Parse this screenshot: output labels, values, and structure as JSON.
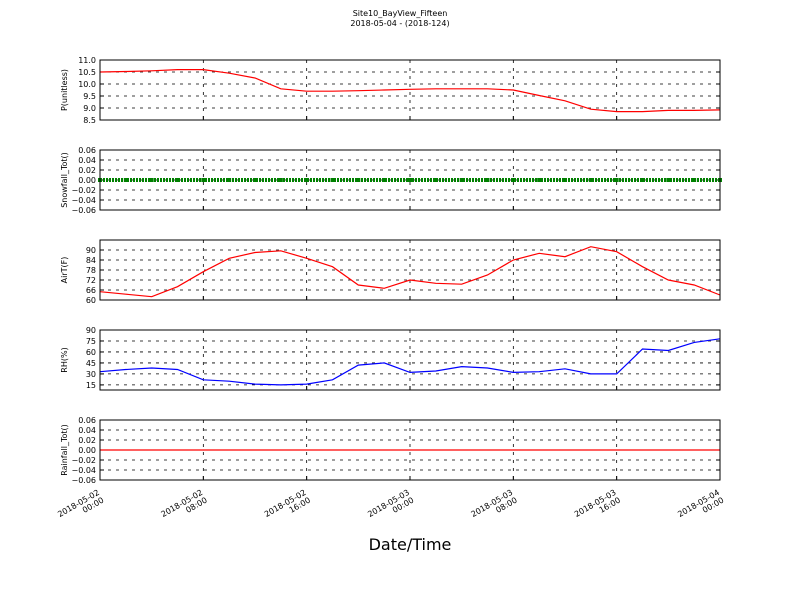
{
  "chart_data": [
    {
      "type": "line",
      "title": "Site10_BayView_Fifteen",
      "subtitle": "2018-05-04 - (2018-124)",
      "ylabel": "P(unitless)",
      "color": "#ff0000",
      "x": [
        "2018-05-02 00:00",
        "2018-05-02 02:00",
        "2018-05-02 04:00",
        "2018-05-02 06:00",
        "2018-05-02 08:00",
        "2018-05-02 10:00",
        "2018-05-02 12:00",
        "2018-05-02 14:00",
        "2018-05-02 16:00",
        "2018-05-02 18:00",
        "2018-05-02 20:00",
        "2018-05-02 22:00",
        "2018-05-03 00:00",
        "2018-05-03 02:00",
        "2018-05-03 04:00",
        "2018-05-03 06:00",
        "2018-05-03 08:00",
        "2018-05-03 10:00",
        "2018-05-03 12:00",
        "2018-05-03 14:00",
        "2018-05-03 16:00",
        "2018-05-03 18:00",
        "2018-05-03 20:00",
        "2018-05-03 22:00",
        "2018-05-04 00:00"
      ],
      "values": [
        10.5,
        10.52,
        10.55,
        10.6,
        10.6,
        10.45,
        10.25,
        9.8,
        9.7,
        9.7,
        9.72,
        9.75,
        9.78,
        9.8,
        9.8,
        9.8,
        9.75,
        9.52,
        9.3,
        8.95,
        8.85,
        8.85,
        8.9,
        8.9,
        8.92
      ],
      "xlim": [
        "2018-05-02 00:00",
        "2018-05-04 00:00"
      ],
      "ylim": [
        8.5,
        11
      ],
      "yticks": [
        8.5,
        {
          "value": 9,
          "label": "9.0"
        },
        9.5,
        {
          "value": 10,
          "label": "10.0"
        },
        10.5,
        {
          "value": 11,
          "label": "11.0"
        }
      ],
      "grid": true
    },
    {
      "type": "scatter",
      "ylabel": "Snowfall_Tot()",
      "color": "#008000",
      "x": [
        "2018-05-02 00:00",
        "2018-05-02 02:00",
        "2018-05-02 04:00",
        "2018-05-02 06:00",
        "2018-05-02 08:00",
        "2018-05-02 10:00",
        "2018-05-02 12:00",
        "2018-05-02 14:00",
        "2018-05-02 16:00",
        "2018-05-02 18:00",
        "2018-05-02 20:00",
        "2018-05-02 22:00",
        "2018-05-03 00:00",
        "2018-05-03 02:00",
        "2018-05-03 04:00",
        "2018-05-03 06:00",
        "2018-05-03 08:00",
        "2018-05-03 10:00",
        "2018-05-03 12:00",
        "2018-05-03 14:00",
        "2018-05-03 16:00",
        "2018-05-03 18:00",
        "2018-05-03 20:00",
        "2018-05-03 22:00",
        "2018-05-04 00:00"
      ],
      "values": [
        0,
        0,
        0,
        0,
        0,
        0,
        0,
        0,
        0,
        0,
        0,
        0,
        0,
        0,
        0,
        0,
        0,
        0,
        0,
        0,
        0,
        0,
        0,
        0,
        0
      ],
      "xlim": [
        "2018-05-02 00:00",
        "2018-05-04 00:00"
      ],
      "ylim": [
        -0.06,
        0.06
      ],
      "yticks": [
        {
          "value": -0.06,
          "label": "−0.06"
        },
        {
          "value": -0.04,
          "label": "−0.04"
        },
        {
          "value": -0.02,
          "label": "−0.02"
        },
        {
          "value": 0,
          "label": "0.00"
        },
        {
          "value": 0.02,
          "label": "0.02"
        },
        {
          "value": 0.04,
          "label": "0.04"
        },
        {
          "value": 0.06,
          "label": "0.06"
        }
      ],
      "grid": true
    },
    {
      "type": "line",
      "ylabel": "AirT(F)",
      "color": "#ff0000",
      "x": [
        "2018-05-02 00:00",
        "2018-05-02 02:00",
        "2018-05-02 04:00",
        "2018-05-02 06:00",
        "2018-05-02 08:00",
        "2018-05-02 10:00",
        "2018-05-02 12:00",
        "2018-05-02 14:00",
        "2018-05-02 16:00",
        "2018-05-02 18:00",
        "2018-05-02 20:00",
        "2018-05-02 22:00",
        "2018-05-03 00:00",
        "2018-05-03 02:00",
        "2018-05-03 04:00",
        "2018-05-03 06:00",
        "2018-05-03 08:00",
        "2018-05-03 10:00",
        "2018-05-03 12:00",
        "2018-05-03 14:00",
        "2018-05-03 16:00",
        "2018-05-03 18:00",
        "2018-05-03 20:00",
        "2018-05-03 22:00",
        "2018-05-04 00:00"
      ],
      "values": [
        65,
        63.5,
        62,
        68,
        77,
        85,
        88.5,
        89.5,
        85,
        80,
        69,
        67,
        72,
        70,
        69.5,
        75,
        84,
        88,
        86,
        92,
        89,
        80,
        72,
        69,
        63
      ],
      "xlim": [
        "2018-05-02 00:00",
        "2018-05-04 00:00"
      ],
      "ylim": [
        60,
        96
      ],
      "yticks": [
        60,
        66,
        72,
        78,
        84,
        90
      ],
      "grid": true
    },
    {
      "type": "line",
      "ylabel": "RH(%)",
      "color": "#0000ff",
      "x": [
        "2018-05-02 00:00",
        "2018-05-02 02:00",
        "2018-05-02 04:00",
        "2018-05-02 06:00",
        "2018-05-02 08:00",
        "2018-05-02 10:00",
        "2018-05-02 12:00",
        "2018-05-02 14:00",
        "2018-05-02 16:00",
        "2018-05-02 18:00",
        "2018-05-02 20:00",
        "2018-05-02 22:00",
        "2018-05-03 00:00",
        "2018-05-03 02:00",
        "2018-05-03 04:00",
        "2018-05-03 06:00",
        "2018-05-03 08:00",
        "2018-05-03 10:00",
        "2018-05-03 12:00",
        "2018-05-03 14:00",
        "2018-05-03 16:00",
        "2018-05-03 18:00",
        "2018-05-03 20:00",
        "2018-05-03 22:00",
        "2018-05-04 00:00"
      ],
      "values": [
        33,
        36,
        38,
        36,
        22,
        20,
        16,
        15,
        16,
        22,
        42,
        45,
        32,
        34,
        40,
        38,
        32,
        33,
        37,
        30,
        30,
        64,
        62,
        73,
        78
      ],
      "xlim": [
        "2018-05-02 00:00",
        "2018-05-04 00:00"
      ],
      "ylim": [
        8,
        90
      ],
      "yticks": [
        15,
        30,
        45,
        60,
        75,
        90
      ],
      "grid": true
    },
    {
      "type": "line",
      "ylabel": "Rainfall_Tot()",
      "xlabel": "Date/Time",
      "color": "#ff0000",
      "x": [
        "2018-05-02 00:00",
        "2018-05-02 02:00",
        "2018-05-02 04:00",
        "2018-05-02 06:00",
        "2018-05-02 08:00",
        "2018-05-02 10:00",
        "2018-05-02 12:00",
        "2018-05-02 14:00",
        "2018-05-02 16:00",
        "2018-05-02 18:00",
        "2018-05-02 20:00",
        "2018-05-02 22:00",
        "2018-05-03 00:00",
        "2018-05-03 02:00",
        "2018-05-03 04:00",
        "2018-05-03 06:00",
        "2018-05-03 08:00",
        "2018-05-03 10:00",
        "2018-05-03 12:00",
        "2018-05-03 14:00",
        "2018-05-03 16:00",
        "2018-05-03 18:00",
        "2018-05-03 20:00",
        "2018-05-03 22:00",
        "2018-05-04 00:00"
      ],
      "values": [
        0,
        0,
        0,
        0,
        0,
        0,
        0,
        0,
        0,
        0,
        0,
        0,
        0,
        0,
        0,
        0,
        0,
        0,
        0,
        0,
        0,
        0,
        0,
        0,
        0
      ],
      "xlim": [
        "2018-05-02 00:00",
        "2018-05-04 00:00"
      ],
      "ylim": [
        -0.06,
        0.06
      ],
      "yticks": [
        {
          "value": -0.06,
          "label": "−0.06"
        },
        {
          "value": -0.04,
          "label": "−0.04"
        },
        {
          "value": -0.02,
          "label": "−0.02"
        },
        {
          "value": 0,
          "label": "0.00"
        },
        {
          "value": 0.02,
          "label": "0.02"
        },
        {
          "value": 0.04,
          "label": "0.04"
        },
        {
          "value": 0.06,
          "label": "0.06"
        }
      ],
      "xticks": [
        {
          "value": "2018-05-02 00:00",
          "label": "2018-05-02\n00:00"
        },
        {
          "value": "2018-05-02 08:00",
          "label": "2018-05-02\n08:00"
        },
        {
          "value": "2018-05-02 16:00",
          "label": "2018-05-02\n16:00"
        },
        {
          "value": "2018-05-03 00:00",
          "label": "2018-05-03\n00:00"
        },
        {
          "value": "2018-05-03 08:00",
          "label": "2018-05-03\n08:00"
        },
        {
          "value": "2018-05-03 16:00",
          "label": "2018-05-03\n16:00"
        },
        {
          "value": "2018-05-04 00:00",
          "label": "2018-05-04\n00:00"
        }
      ],
      "grid": true
    }
  ]
}
